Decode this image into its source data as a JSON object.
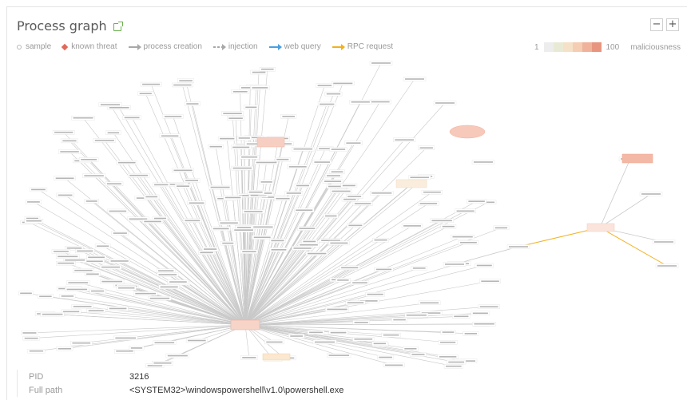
{
  "header": {
    "title": "Process graph",
    "zoom_out_label": "−",
    "zoom_in_label": "+"
  },
  "legend": {
    "items": [
      {
        "label": "sample",
        "color": "#b8b8b8"
      },
      {
        "label": "known threat",
        "color": "#e06a5a"
      },
      {
        "label": "process creation",
        "color": "#a8a8a8"
      },
      {
        "label": "injection",
        "color": "#a8a8a8"
      },
      {
        "label": "web query",
        "color": "#4a9fe0"
      },
      {
        "label": "RPC request",
        "color": "#f2b01e"
      }
    ],
    "scale_min": "1",
    "scale_max": "100",
    "scale_label": "maliciousness",
    "scale_colors": [
      "#ededed",
      "#e9ead5",
      "#f5e0c8",
      "#f4cdb3",
      "#efb39c",
      "#e89580"
    ]
  },
  "details": {
    "rows": [
      {
        "label": "PID",
        "value": "3216"
      },
      {
        "label": "Full path",
        "value": "<SYSTEM32>\\windowspowershell\\v1.0\\powershell.exe"
      }
    ]
  }
}
